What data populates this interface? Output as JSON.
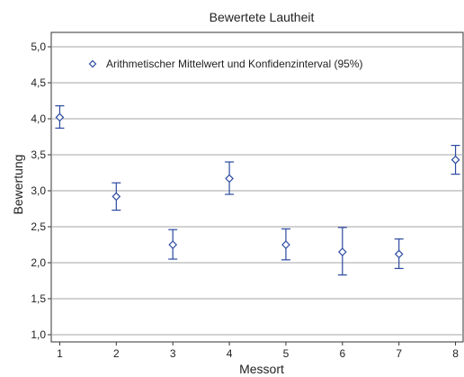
{
  "chart_data": {
    "type": "scatter",
    "title": "Bewertete Lautheit",
    "xlabel": "Messort",
    "ylabel": "Bewertung",
    "xlim": [
      0.85,
      8.15
    ],
    "ylim": [
      0.9,
      5.2
    ],
    "xticks": [
      1,
      2,
      3,
      4,
      5,
      6,
      7,
      8
    ],
    "xtick_labels": [
      "1",
      "2",
      "3",
      "4",
      "5",
      "6",
      "7",
      "8"
    ],
    "yticks": [
      1.0,
      1.5,
      2.0,
      2.5,
      3.0,
      3.5,
      4.0,
      4.5,
      5.0
    ],
    "ytick_labels": [
      "1,0",
      "1,5",
      "2,0",
      "2,5",
      "3,0",
      "3,5",
      "4,0",
      "4,5",
      "5,0"
    ],
    "grid": "horizontal",
    "legend_position": "top",
    "series": [
      {
        "name": "Arithmetischer Mittelwert und Konfidenzinterval (95%)",
        "marker": "diamond",
        "x": [
          1,
          2,
          3,
          4,
          5,
          6,
          7,
          8
        ],
        "y": [
          4.02,
          2.92,
          2.25,
          3.17,
          2.25,
          2.15,
          2.12,
          3.43
        ],
        "ci_low": [
          3.87,
          2.73,
          2.05,
          2.95,
          2.04,
          1.83,
          1.92,
          3.23
        ],
        "ci_high": [
          4.18,
          3.11,
          2.46,
          3.4,
          2.47,
          2.49,
          2.33,
          3.63
        ]
      }
    ],
    "colors": {
      "series": "#2b4aa0",
      "grid": "#a6a6a6",
      "axis": "#333333"
    }
  }
}
